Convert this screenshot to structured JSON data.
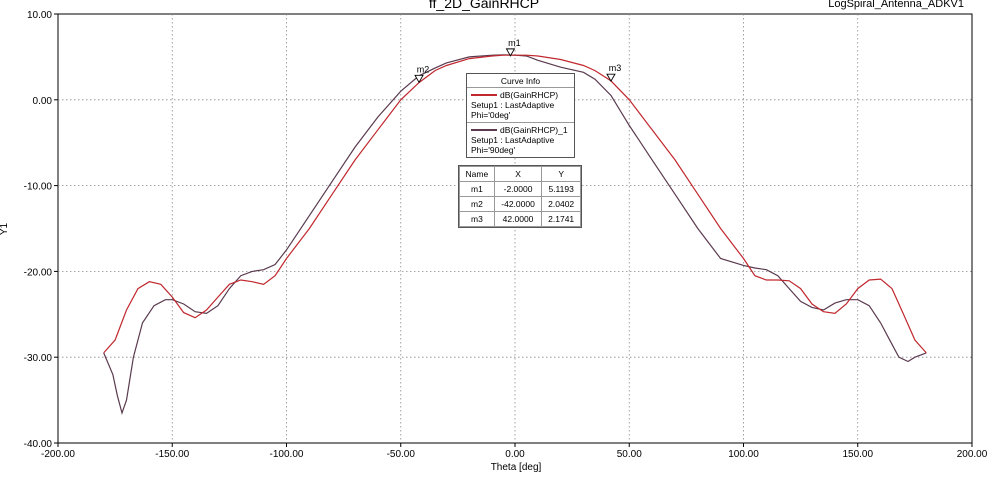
{
  "chart_data": {
    "type": "line",
    "title": "ff_2D_GainRHCP",
    "subtitle": "LogSpiral_Antenna_ADKV1",
    "xlabel": "Theta [deg]",
    "ylabel": "Y1",
    "xlim": [
      -200,
      200
    ],
    "ylim": [
      -40,
      10
    ],
    "xticks": [
      "-200.00",
      "-150.00",
      "-100.00",
      "-50.00",
      "0.00",
      "50.00",
      "100.00",
      "150.00",
      "200.00"
    ],
    "yticks": [
      "10.00",
      "0.00",
      "-10.00",
      "-20.00",
      "-30.00",
      "-40.00"
    ],
    "grid": true,
    "series": [
      {
        "name": "dB(GainRHCP)",
        "color": "#c0282e",
        "x": [
          -180,
          -175,
          -170,
          -165,
          -160,
          -155,
          -150,
          -145,
          -140,
          -135,
          -130,
          -125,
          -120,
          -115,
          -110,
          -105,
          -100,
          -90,
          -80,
          -70,
          -60,
          -50,
          -42,
          -35,
          -30,
          -20,
          -10,
          -5,
          0,
          5,
          10,
          20,
          30,
          35,
          42,
          50,
          60,
          70,
          80,
          90,
          100,
          105,
          110,
          115,
          120,
          125,
          130,
          135,
          140,
          145,
          150,
          155,
          160,
          165,
          170,
          175,
          180
        ],
        "y": [
          -29.5,
          -28,
          -24.5,
          -22,
          -21.2,
          -21.5,
          -23,
          -24.8,
          -25.4,
          -24.5,
          -23,
          -21.5,
          -21,
          -21.2,
          -21.5,
          -20.5,
          -18.5,
          -15,
          -11,
          -7,
          -3.5,
          0,
          2,
          3.4,
          4,
          4.8,
          5.1,
          5.2,
          5.2,
          5.2,
          5.1,
          4.7,
          4,
          3.4,
          2.2,
          0,
          -3.5,
          -7,
          -11,
          -15,
          -18.5,
          -20.5,
          -21,
          -21,
          -21.1,
          -22,
          -23.8,
          -24.7,
          -24.9,
          -23.8,
          -22,
          -21,
          -20.9,
          -22,
          -25,
          -28,
          -29.5
        ]
      },
      {
        "name": "dB(GainRHCP)_1",
        "color": "#5a3a4e",
        "x": [
          -180,
          -176,
          -174,
          -172,
          -170,
          -167,
          -163,
          -158,
          -153,
          -150,
          -145,
          -140,
          -135,
          -130,
          -125,
          -120,
          -115,
          -110,
          -105,
          -100,
          -90,
          -80,
          -70,
          -60,
          -50,
          -42,
          -35,
          -30,
          -20,
          -10,
          -5,
          0,
          5,
          10,
          20,
          30,
          35,
          42,
          50,
          60,
          70,
          80,
          90,
          100,
          105,
          110,
          115,
          120,
          125,
          130,
          135,
          140,
          145,
          150,
          155,
          160,
          165,
          168,
          172,
          175,
          180
        ],
        "y": [
          -29.5,
          -32,
          -34.5,
          -36.5,
          -35,
          -30,
          -26,
          -24,
          -23.3,
          -23.3,
          -23.8,
          -24.7,
          -24.9,
          -24,
          -22,
          -20.5,
          -20,
          -19.8,
          -19.2,
          -17.5,
          -13.5,
          -9.5,
          -5.5,
          -2,
          1,
          2.8,
          3.7,
          4.3,
          5,
          5.2,
          5.25,
          5.2,
          5.1,
          4.6,
          3.8,
          3.2,
          2.4,
          0.5,
          -3,
          -7,
          -11,
          -15,
          -18.5,
          -19.3,
          -19.6,
          -19.8,
          -20.5,
          -22,
          -23.5,
          -24.2,
          -24.5,
          -23.7,
          -23.3,
          -23.3,
          -24,
          -26,
          -28.5,
          -30,
          -30.5,
          -30,
          -29.5
        ]
      }
    ],
    "markers": [
      {
        "name": "m1",
        "x": -2,
        "y": 5.1193
      },
      {
        "name": "m2",
        "x": -42,
        "y": 2.0402
      },
      {
        "name": "m3",
        "x": 42,
        "y": 2.1741
      }
    ]
  },
  "curve_info": {
    "title": "Curve Info",
    "entries": [
      {
        "name": "dB(GainRHCP)",
        "setup": "Setup1 : LastAdaptive",
        "phi": "Phi='0deg'",
        "color": "#c0282e"
      },
      {
        "name": "dB(GainRHCP)_1",
        "setup": "Setup1 : LastAdaptive",
        "phi": "Phi='90deg'",
        "color": "#5a3a4e"
      }
    ]
  },
  "marker_table": {
    "headers": [
      "Name",
      "X",
      "Y"
    ],
    "rows": [
      [
        "m1",
        "-2.0000",
        "5.1193"
      ],
      [
        "m2",
        "-42.0000",
        "2.0402"
      ],
      [
        "m3",
        "42.0000",
        "2.1741"
      ]
    ]
  }
}
